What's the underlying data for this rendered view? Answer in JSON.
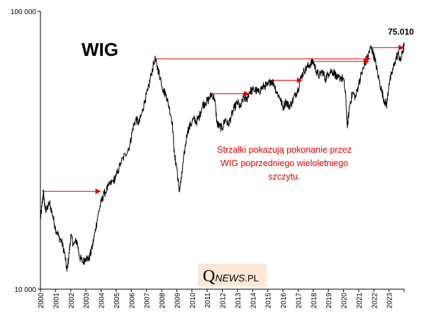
{
  "chart_data": {
    "type": "line",
    "title": "WIG",
    "y_scale": "log",
    "ylim": [
      10000,
      100000
    ],
    "y_ticks": [
      "100 000",
      "10 000"
    ],
    "y_tick_values": [
      100000,
      10000
    ],
    "xlim": [
      2000.0,
      2024.0
    ],
    "x_ticks": [
      "2000",
      "2001",
      "2002",
      "2003",
      "2004",
      "2005",
      "2006",
      "2007",
      "2008",
      "2009",
      "2010",
      "2011",
      "2012",
      "2013",
      "2014",
      "2015",
      "2016",
      "2017",
      "2018",
      "2019",
      "2020",
      "2021",
      "2022",
      "2023"
    ],
    "end_label": "75.010",
    "annotation": [
      "Strzałki pokazują pokonanie przez",
      "WIG poprzedniego wieloletniego",
      "szczytu."
    ],
    "series": [
      {
        "name": "WIG",
        "color": "#000000",
        "points": [
          [
            2000.0,
            17800
          ],
          [
            2000.1,
            19800
          ],
          [
            2000.2,
            22500
          ],
          [
            2000.3,
            19500
          ],
          [
            2000.4,
            19200
          ],
          [
            2000.6,
            20500
          ],
          [
            2000.8,
            18500
          ],
          [
            2001.0,
            16500
          ],
          [
            2001.2,
            15500
          ],
          [
            2001.4,
            14800
          ],
          [
            2001.6,
            13500
          ],
          [
            2001.75,
            11600
          ],
          [
            2001.9,
            13500
          ],
          [
            2002.0,
            15500
          ],
          [
            2002.2,
            14500
          ],
          [
            2002.4,
            15000
          ],
          [
            2002.6,
            13000
          ],
          [
            2002.8,
            12500
          ],
          [
            2003.0,
            13000
          ],
          [
            2003.2,
            12800
          ],
          [
            2003.4,
            14000
          ],
          [
            2003.6,
            16000
          ],
          [
            2003.8,
            18500
          ],
          [
            2004.0,
            20500
          ],
          [
            2004.2,
            22000
          ],
          [
            2004.5,
            23500
          ],
          [
            2004.8,
            24500
          ],
          [
            2005.0,
            25500
          ],
          [
            2005.3,
            28500
          ],
          [
            2005.6,
            30500
          ],
          [
            2005.9,
            33000
          ],
          [
            2006.1,
            38000
          ],
          [
            2006.3,
            41000
          ],
          [
            2006.5,
            39500
          ],
          [
            2006.7,
            43000
          ],
          [
            2006.9,
            48000
          ],
          [
            2007.1,
            52000
          ],
          [
            2007.3,
            59000
          ],
          [
            2007.55,
            67500
          ],
          [
            2007.75,
            62000
          ],
          [
            2007.9,
            58000
          ],
          [
            2008.1,
            52000
          ],
          [
            2008.3,
            50000
          ],
          [
            2008.5,
            45000
          ],
          [
            2008.7,
            40000
          ],
          [
            2008.85,
            30000
          ],
          [
            2009.0,
            27500
          ],
          [
            2009.15,
            22500
          ],
          [
            2009.3,
            25000
          ],
          [
            2009.5,
            31000
          ],
          [
            2009.7,
            37000
          ],
          [
            2009.9,
            39000
          ],
          [
            2010.1,
            41000
          ],
          [
            2010.3,
            40000
          ],
          [
            2010.5,
            42000
          ],
          [
            2010.7,
            46000
          ],
          [
            2010.9,
            47000
          ],
          [
            2011.1,
            48000
          ],
          [
            2011.3,
            50500
          ],
          [
            2011.5,
            48500
          ],
          [
            2011.65,
            39500
          ],
          [
            2011.8,
            38500
          ],
          [
            2012.0,
            38000
          ],
          [
            2012.2,
            41000
          ],
          [
            2012.4,
            39000
          ],
          [
            2012.6,
            42000
          ],
          [
            2012.8,
            45000
          ],
          [
            2013.0,
            47000
          ],
          [
            2013.2,
            45000
          ],
          [
            2013.4,
            49000
          ],
          [
            2013.6,
            48000
          ],
          [
            2013.8,
            51500
          ],
          [
            2014.0,
            52000
          ],
          [
            2014.2,
            52000
          ],
          [
            2014.4,
            51000
          ],
          [
            2014.6,
            53000
          ],
          [
            2014.8,
            54000
          ],
          [
            2015.0,
            54000
          ],
          [
            2015.2,
            56500
          ],
          [
            2015.4,
            55000
          ],
          [
            2015.6,
            51000
          ],
          [
            2015.8,
            49000
          ],
          [
            2016.0,
            45000
          ],
          [
            2016.2,
            47500
          ],
          [
            2016.4,
            45500
          ],
          [
            2016.6,
            47000
          ],
          [
            2016.8,
            50000
          ],
          [
            2017.0,
            52500
          ],
          [
            2017.2,
            58000
          ],
          [
            2017.4,
            61000
          ],
          [
            2017.6,
            63000
          ],
          [
            2017.8,
            64500
          ],
          [
            2018.0,
            66000
          ],
          [
            2018.2,
            61000
          ],
          [
            2018.4,
            58500
          ],
          [
            2018.6,
            61000
          ],
          [
            2018.8,
            57000
          ],
          [
            2019.0,
            60000
          ],
          [
            2019.2,
            61000
          ],
          [
            2019.4,
            60000
          ],
          [
            2019.6,
            57000
          ],
          [
            2019.8,
            58000
          ],
          [
            2020.0,
            57000
          ],
          [
            2020.15,
            49000
          ],
          [
            2020.25,
            38000
          ],
          [
            2020.4,
            46000
          ],
          [
            2020.6,
            51000
          ],
          [
            2020.8,
            49000
          ],
          [
            2021.0,
            55000
          ],
          [
            2021.2,
            60000
          ],
          [
            2021.4,
            64000
          ],
          [
            2021.6,
            69000
          ],
          [
            2021.8,
            74000
          ],
          [
            2021.95,
            71000
          ],
          [
            2022.1,
            66000
          ],
          [
            2022.3,
            58000
          ],
          [
            2022.5,
            52000
          ],
          [
            2022.7,
            47500
          ],
          [
            2022.85,
            46000
          ],
          [
            2023.0,
            55000
          ],
          [
            2023.2,
            60000
          ],
          [
            2023.4,
            66000
          ],
          [
            2023.6,
            71000
          ],
          [
            2023.75,
            66000
          ],
          [
            2023.9,
            72000
          ],
          [
            2024.0,
            75010
          ]
        ]
      }
    ],
    "arrows": [
      {
        "from": [
          2000.1,
          22500
        ],
        "to": [
          2004.0,
          22500
        ]
      },
      {
        "from": [
          2007.55,
          67500
        ],
        "to": [
          2021.8,
          67500
        ]
      },
      {
        "from": [
          2011.3,
          50500
        ],
        "to": [
          2013.8,
          50500
        ]
      },
      {
        "from": [
          2015.2,
          56500
        ],
        "to": [
          2017.3,
          56500
        ]
      },
      {
        "from": [
          2018.0,
          66000
        ],
        "to": [
          2021.7,
          66000
        ]
      },
      {
        "from": [
          2021.8,
          74000
        ],
        "to": [
          2024.0,
          74000
        ]
      }
    ]
  },
  "logo": {
    "q": "Q",
    "news": "NEWS",
    "pl": ".PL"
  }
}
